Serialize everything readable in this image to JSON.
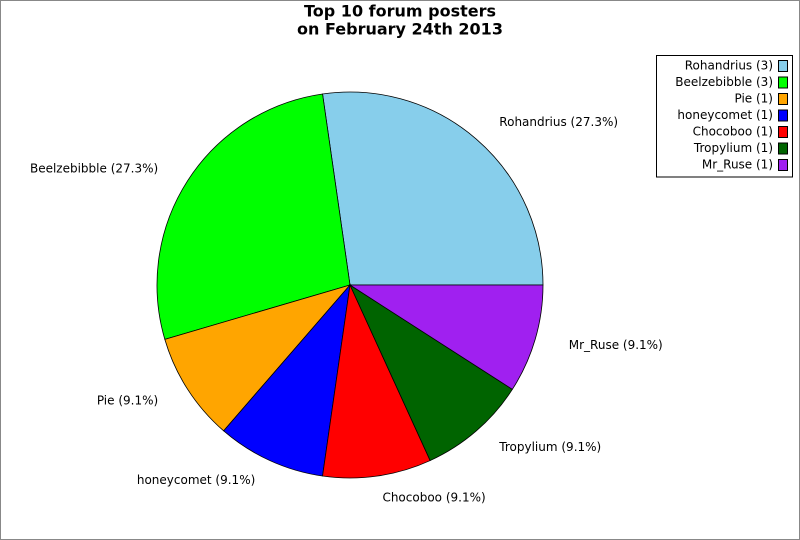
{
  "chart_data": {
    "type": "pie",
    "title": [
      "Top 10 forum posters",
      "on February 24th 2013"
    ],
    "categories": [
      "Rohandrius",
      "Beelzebibble",
      "Pie",
      "honeycomet",
      "Chocoboo",
      "Tropylium",
      "Mr_Ruse"
    ],
    "values": [
      27.3,
      27.3,
      9.1,
      9.1,
      9.1,
      9.1,
      9.1
    ],
    "value_labels": [
      "Rohandrius (27.3%)",
      "Beelzebibble (27.3%)",
      "Pie (9.1%)",
      "honeycomet (9.1%)",
      "Chocoboo (9.1%)",
      "Tropylium (9.1%)",
      "Mr_Ruse (9.1%)"
    ],
    "legend_labels": [
      "Rohandrius (3)",
      "Beelzebibble (3)",
      "Pie (1)",
      "honeycomet (1)",
      "Chocoboo (1)",
      "Tropylium (1)",
      "Mr_Ruse (1)"
    ],
    "colors": [
      "#87ceeb",
      "#00ff00",
      "#ffa500",
      "#0000ff",
      "#ff0000",
      "#006400",
      "#a020f0"
    ],
    "legend": "top-right"
  }
}
